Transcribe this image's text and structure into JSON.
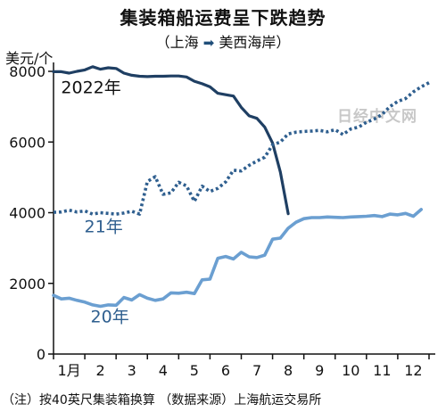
{
  "title": "集装箱船运费呈下跌趋势",
  "subtitle": {
    "open": "（上海",
    "arrow": "➡",
    "close": "美西海岸）"
  },
  "unit_label": "美元/个",
  "watermark": "日经中文网",
  "note": "（注）按40英尺集装箱换算 （数据来源）上海航运交易所",
  "colors": {
    "y2022": "#1f3f63",
    "y2021": "#2f5f8f",
    "y2020": "#6b9fd1",
    "axis": "#111111"
  },
  "chart_data": {
    "type": "line",
    "title": "集装箱船运费呈下跌趋势",
    "ylabel": "美元/个",
    "ylim": [
      0,
      8000
    ],
    "yticks": [
      0,
      2000,
      4000,
      6000,
      8000
    ],
    "xlim": [
      0.5,
      12.7
    ],
    "xticks": [
      "1月",
      "2",
      "3",
      "4",
      "5",
      "6",
      "7",
      "8",
      "9",
      "10",
      "11",
      "12"
    ],
    "grid": false,
    "series": [
      {
        "name": "2022年",
        "style": "solid",
        "points": [
          [
            0.5,
            7990
          ],
          [
            0.75,
            7990
          ],
          [
            1.0,
            7950
          ],
          [
            1.25,
            8000
          ],
          [
            1.5,
            8040
          ],
          [
            1.75,
            8130
          ],
          [
            2.0,
            8060
          ],
          [
            2.25,
            8100
          ],
          [
            2.5,
            8080
          ],
          [
            2.75,
            7950
          ],
          [
            3.0,
            7890
          ],
          [
            3.25,
            7860
          ],
          [
            3.5,
            7850
          ],
          [
            3.75,
            7860
          ],
          [
            4.0,
            7860
          ],
          [
            4.25,
            7870
          ],
          [
            4.5,
            7870
          ],
          [
            4.75,
            7840
          ],
          [
            5.0,
            7720
          ],
          [
            5.25,
            7650
          ],
          [
            5.5,
            7560
          ],
          [
            5.75,
            7380
          ],
          [
            6.0,
            7340
          ],
          [
            6.25,
            7300
          ],
          [
            6.5,
            6980
          ],
          [
            6.75,
            6740
          ],
          [
            7.0,
            6670
          ],
          [
            7.25,
            6420
          ],
          [
            7.5,
            5970
          ],
          [
            7.75,
            5150
          ],
          [
            8.0,
            3970
          ]
        ]
      },
      {
        "name": "21年",
        "style": "dotted",
        "points": [
          [
            0.5,
            4010
          ],
          [
            0.75,
            4020
          ],
          [
            1.0,
            4070
          ],
          [
            1.25,
            4020
          ],
          [
            1.5,
            4050
          ],
          [
            1.75,
            3960
          ],
          [
            2.0,
            4000
          ],
          [
            2.25,
            3980
          ],
          [
            2.5,
            3960
          ],
          [
            2.75,
            3990
          ],
          [
            3.0,
            4040
          ],
          [
            3.25,
            3960
          ],
          [
            3.5,
            4880
          ],
          [
            3.75,
            5020
          ],
          [
            4.0,
            4520
          ],
          [
            4.25,
            4560
          ],
          [
            4.5,
            4860
          ],
          [
            4.75,
            4760
          ],
          [
            5.0,
            4320
          ],
          [
            5.25,
            4750
          ],
          [
            5.5,
            4600
          ],
          [
            5.75,
            4690
          ],
          [
            6.0,
            4870
          ],
          [
            6.25,
            5200
          ],
          [
            6.5,
            5180
          ],
          [
            6.75,
            5340
          ],
          [
            7.0,
            5460
          ],
          [
            7.25,
            5570
          ],
          [
            7.5,
            5920
          ],
          [
            7.75,
            6000
          ],
          [
            8.0,
            6230
          ],
          [
            8.25,
            6280
          ],
          [
            8.5,
            6300
          ],
          [
            8.75,
            6310
          ],
          [
            9.0,
            6330
          ],
          [
            9.25,
            6290
          ],
          [
            9.5,
            6350
          ],
          [
            9.75,
            6210
          ],
          [
            10.0,
            6370
          ],
          [
            10.25,
            6420
          ],
          [
            10.5,
            6560
          ],
          [
            10.75,
            6650
          ],
          [
            11.0,
            6780
          ],
          [
            11.25,
            7000
          ],
          [
            11.5,
            7150
          ],
          [
            11.75,
            7230
          ],
          [
            12.0,
            7420
          ],
          [
            12.25,
            7560
          ],
          [
            12.5,
            7680
          ]
        ]
      },
      {
        "name": "20年",
        "style": "solid",
        "points": [
          [
            0.5,
            1660
          ],
          [
            0.75,
            1560
          ],
          [
            1.0,
            1580
          ],
          [
            1.25,
            1520
          ],
          [
            1.5,
            1470
          ],
          [
            1.75,
            1390
          ],
          [
            2.0,
            1350
          ],
          [
            2.25,
            1390
          ],
          [
            2.5,
            1380
          ],
          [
            2.75,
            1600
          ],
          [
            3.0,
            1530
          ],
          [
            3.25,
            1680
          ],
          [
            3.5,
            1580
          ],
          [
            3.75,
            1520
          ],
          [
            4.0,
            1560
          ],
          [
            4.25,
            1730
          ],
          [
            4.5,
            1720
          ],
          [
            4.75,
            1750
          ],
          [
            5.0,
            1710
          ],
          [
            5.25,
            2100
          ],
          [
            5.5,
            2120
          ],
          [
            5.75,
            2710
          ],
          [
            6.0,
            2760
          ],
          [
            6.25,
            2690
          ],
          [
            6.5,
            2880
          ],
          [
            6.75,
            2750
          ],
          [
            7.0,
            2730
          ],
          [
            7.25,
            2800
          ],
          [
            7.5,
            3250
          ],
          [
            7.75,
            3280
          ],
          [
            8.0,
            3560
          ],
          [
            8.25,
            3730
          ],
          [
            8.5,
            3830
          ],
          [
            8.75,
            3860
          ],
          [
            9.0,
            3860
          ],
          [
            9.25,
            3880
          ],
          [
            9.5,
            3870
          ],
          [
            9.75,
            3860
          ],
          [
            10.0,
            3880
          ],
          [
            10.25,
            3890
          ],
          [
            10.5,
            3900
          ],
          [
            10.75,
            3920
          ],
          [
            11.0,
            3890
          ],
          [
            11.25,
            3960
          ],
          [
            11.5,
            3940
          ],
          [
            11.75,
            3980
          ],
          [
            12.0,
            3900
          ],
          [
            12.25,
            4090
          ]
        ]
      }
    ]
  }
}
